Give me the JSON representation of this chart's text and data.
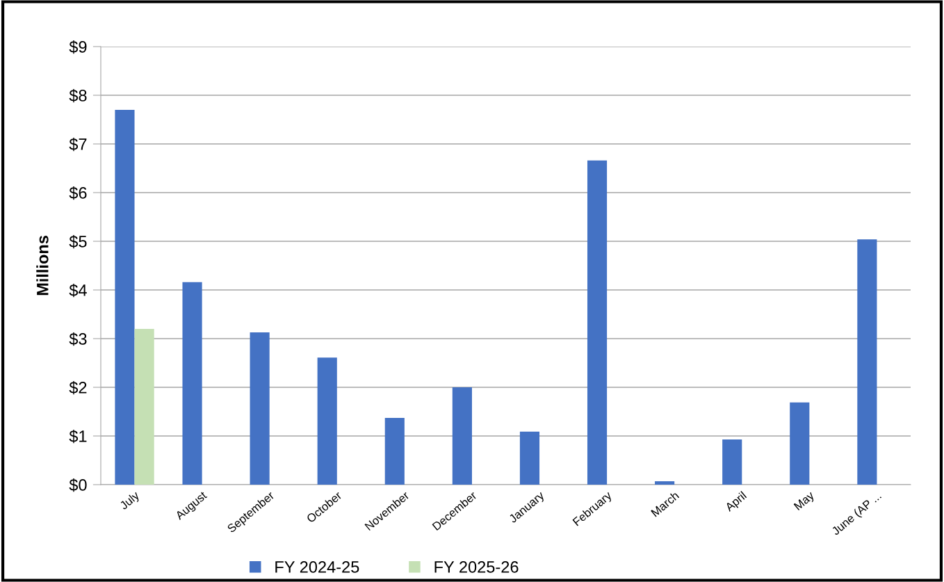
{
  "chart_data": {
    "type": "bar",
    "ylabel": "Millions",
    "categories": [
      "July",
      "August",
      "September",
      "October",
      "November",
      "December",
      "January",
      "February",
      "March",
      "April",
      "May",
      "June (AP ..."
    ],
    "series": [
      {
        "name": "FY 2024-25",
        "color": "#4472c4",
        "values": [
          7.7,
          4.16,
          3.13,
          2.61,
          1.37,
          2.0,
          1.09,
          6.66,
          0.07,
          0.93,
          1.69,
          5.04
        ]
      },
      {
        "name": "FY 2025-26",
        "color": "#c5e0b4",
        "values": [
          3.2,
          null,
          null,
          null,
          null,
          null,
          null,
          null,
          null,
          null,
          null,
          null
        ]
      }
    ],
    "ylim": [
      0,
      9
    ],
    "yticks": [
      {
        "value": 0,
        "label": "$0"
      },
      {
        "value": 1,
        "label": "$1"
      },
      {
        "value": 2,
        "label": "$2"
      },
      {
        "value": 3,
        "label": "$3"
      },
      {
        "value": 4,
        "label": "$4"
      },
      {
        "value": 5,
        "label": "$5"
      },
      {
        "value": 6,
        "label": "$6"
      },
      {
        "value": 7,
        "label": "$7"
      },
      {
        "value": 8,
        "label": "$8"
      },
      {
        "value": 9,
        "label": "$9"
      }
    ],
    "grid": "y",
    "legend": "bottom"
  }
}
